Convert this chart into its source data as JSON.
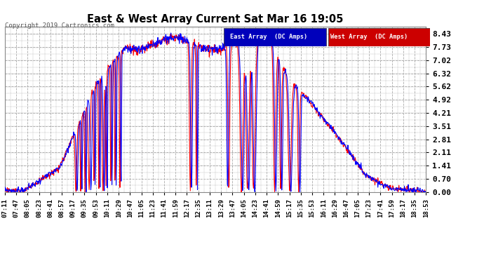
{
  "title": "East & West Array Current Sat Mar 16 19:05",
  "copyright": "Copyright 2019 Cartronics.com",
  "legend_east": "East Array  (DC Amps)",
  "legend_west": "West Array  (DC Amps)",
  "east_color": "#0000ff",
  "west_color": "#ff0000",
  "legend_east_bg": "#0000bb",
  "legend_west_bg": "#cc0000",
  "bg_color": "#ffffff",
  "plot_bg_color": "#ffffff",
  "grid_color": "#aaaaaa",
  "yticks": [
    0.0,
    0.7,
    1.41,
    2.11,
    2.81,
    3.51,
    4.21,
    4.92,
    5.62,
    6.32,
    7.02,
    7.73,
    8.43
  ],
  "ylim": [
    0.0,
    8.83
  ],
  "x_labels": [
    "07:11",
    "07:47",
    "08:05",
    "08:23",
    "08:41",
    "08:57",
    "09:17",
    "09:35",
    "09:53",
    "10:11",
    "10:29",
    "10:47",
    "11:05",
    "11:23",
    "11:41",
    "11:59",
    "12:17",
    "12:35",
    "13:11",
    "13:29",
    "13:47",
    "14:05",
    "14:23",
    "14:41",
    "14:59",
    "15:17",
    "15:35",
    "15:53",
    "16:11",
    "16:29",
    "16:47",
    "17:05",
    "17:23",
    "17:41",
    "17:59",
    "18:17",
    "18:35",
    "18:53"
  ],
  "figsize": [
    6.9,
    3.75
  ],
  "dpi": 100
}
